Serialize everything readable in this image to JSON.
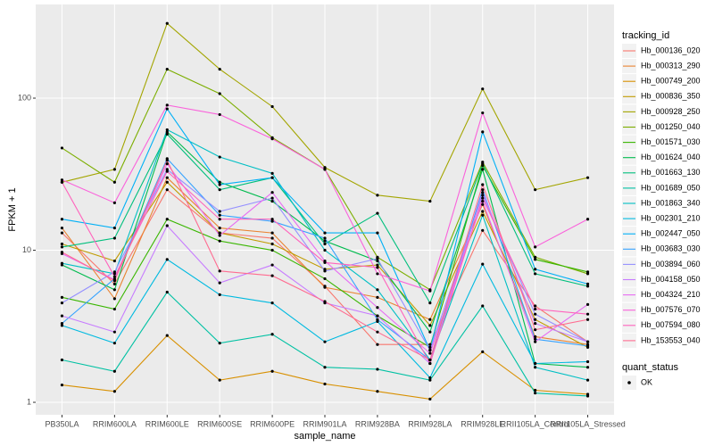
{
  "chart_data": {
    "type": "line",
    "x_label": "sample_name",
    "y_label": "FPKM + 1",
    "categories": [
      "PB350LA",
      "RRIM600LA",
      "RRIM600LE",
      "RRIM600SE",
      "RRIM600PE",
      "RRIM901LA",
      "RRIM928BA",
      "RRIM928LA",
      "RRIM928LE",
      "RRII105LA_Control",
      "RRII105LA_Stressed"
    ],
    "log_y": true,
    "grid": true,
    "legend_position": "right",
    "ylim": [
      0.828,
      413
    ],
    "yticks": [
      1,
      10,
      100
    ],
    "legend_title": "tracking_id",
    "point_legend": {
      "title": "quant_status",
      "labels": [
        "OK"
      ],
      "color": "#000000"
    },
    "series": [
      {
        "name": "Hb_000136_020",
        "color": "#F8766D",
        "values": [
          13,
          6,
          25,
          13,
          12,
          5.8,
          2.4,
          2.4,
          13.5,
          4.3,
          2.5
        ]
      },
      {
        "name": "Hb_000313_290",
        "color": "#EA8331",
        "values": [
          14,
          4.8,
          30,
          14,
          13,
          5.7,
          4.9,
          3.5,
          20,
          2.7,
          2.4
        ]
      },
      {
        "name": "Hb_000749_200",
        "color": "#D89000",
        "values": [
          1.3,
          1.18,
          2.75,
          1.4,
          1.6,
          1.32,
          1.18,
          1.05,
          2.15,
          1.2,
          1.13
        ]
      },
      {
        "name": "Hb_000836_350",
        "color": "#C09B00",
        "values": [
          11,
          8.5,
          28,
          13,
          11,
          7.5,
          8,
          3.2,
          18,
          3.5,
          2.3
        ]
      },
      {
        "name": "Hb_000928_250",
        "color": "#A3A500",
        "values": [
          28,
          34,
          310,
          155,
          88,
          35,
          23,
          21,
          115,
          25,
          30
        ]
      },
      {
        "name": "Hb_001250_040",
        "color": "#7CAE00",
        "values": [
          47,
          28,
          155,
          107,
          55,
          34,
          9,
          5.5,
          38,
          9,
          7
        ]
      },
      {
        "name": "Hb_001571_030",
        "color": "#39B600",
        "values": [
          4.9,
          4.1,
          16,
          11.5,
          10,
          6.5,
          3.7,
          2.3,
          36,
          8.7,
          7.2
        ]
      },
      {
        "name": "Hb_001624_040",
        "color": "#00BB4E",
        "values": [
          8,
          5.5,
          60,
          28,
          21,
          11.5,
          8.5,
          2.9,
          34,
          1.8,
          1.7
        ]
      },
      {
        "name": "Hb_001663_130",
        "color": "#00BF7D",
        "values": [
          10.5,
          12,
          58,
          25,
          30,
          11,
          17.5,
          4.5,
          37,
          7,
          5.8
        ]
      },
      {
        "name": "Hb_001689_050",
        "color": "#00C1A3",
        "values": [
          1.9,
          1.6,
          5.3,
          2.45,
          2.8,
          1.7,
          1.65,
          1.4,
          4.3,
          1.15,
          1.1
        ]
      },
      {
        "name": "Hb_001863_340",
        "color": "#00BFC4",
        "values": [
          8.2,
          7,
          62,
          41,
          32,
          10,
          5.5,
          1.9,
          17,
          1.7,
          1.4
        ]
      },
      {
        "name": "Hb_002301_210",
        "color": "#00BAE0",
        "values": [
          3.2,
          2.45,
          8.7,
          5.1,
          4.5,
          2.5,
          3.4,
          1.45,
          8.1,
          1.8,
          1.85
        ]
      },
      {
        "name": "Hb_002447_050",
        "color": "#00B0F6",
        "values": [
          16,
          14,
          85,
          27,
          30,
          13,
          13,
          2.2,
          60,
          7.5,
          6
        ]
      },
      {
        "name": "Hb_003683_030",
        "color": "#35A2FF",
        "values": [
          3.3,
          6.5,
          40,
          17,
          15.5,
          12,
          3.5,
          1.9,
          25,
          2.6,
          2.35
        ]
      },
      {
        "name": "Hb_003894_060",
        "color": "#9590FF",
        "values": [
          4.5,
          7.2,
          34,
          18,
          22,
          7.3,
          8.8,
          2.2,
          23,
          3.8,
          2.5
        ]
      },
      {
        "name": "Hb_004158_050",
        "color": "#C77CFF",
        "values": [
          3.7,
          2.9,
          14.5,
          6.1,
          8,
          4.5,
          3.7,
          1.8,
          24,
          3.3,
          2.5
        ]
      },
      {
        "name": "Hb_004324_210",
        "color": "#E76BF3",
        "values": [
          9.5,
          6.4,
          37,
          12.5,
          24,
          8.5,
          4.2,
          2.1,
          21,
          2.5,
          4.4
        ]
      },
      {
        "name": "Hb_007576_070",
        "color": "#FA62DB",
        "values": [
          29,
          20.5,
          90,
          78,
          54,
          34,
          7,
          5.4,
          80,
          10.5,
          16
        ]
      },
      {
        "name": "Hb_007594_080",
        "color": "#FF62BC",
        "values": [
          28,
          6.7,
          33,
          16,
          16,
          8.3,
          7.7,
          1.8,
          22,
          4.1,
          3.8
        ]
      },
      {
        "name": "Hb_153553_040",
        "color": "#FF6C91",
        "values": [
          9.7,
          6.3,
          39,
          7.3,
          6.8,
          4.6,
          2.9,
          1.9,
          27,
          3,
          3.5
        ]
      }
    ]
  }
}
